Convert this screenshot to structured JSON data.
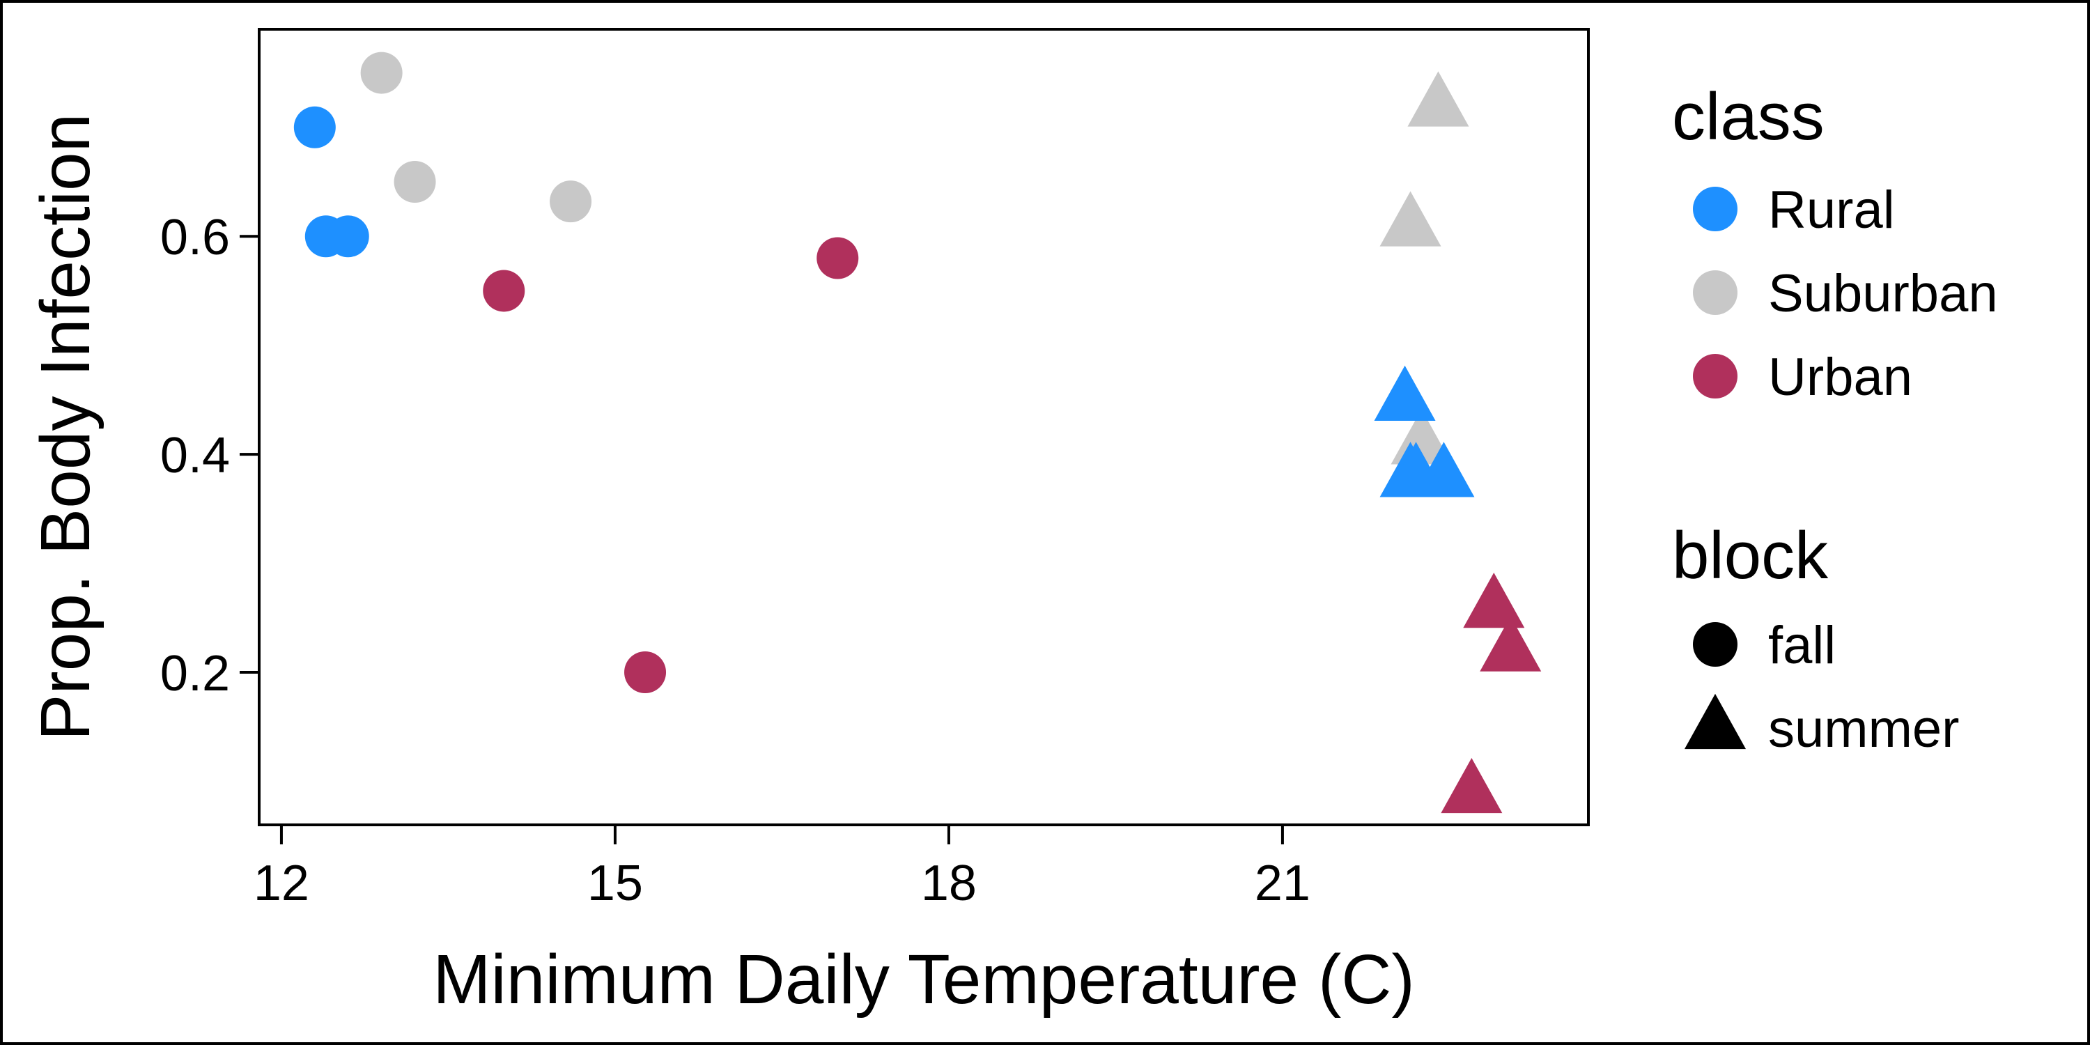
{
  "chart_data": {
    "type": "scatter",
    "title": "",
    "xlabel": "Minimum Daily Temperature (C)",
    "ylabel": "Prop. Body Infection",
    "xlim": [
      11.8,
      23.75
    ],
    "ylim": [
      0.06,
      0.79
    ],
    "x_ticks": [
      12,
      15,
      18,
      21
    ],
    "y_ticks": [
      0.2,
      0.4,
      0.6
    ],
    "x_tick_labels": [
      "12",
      "15",
      "18",
      "21"
    ],
    "y_tick_labels": [
      "0.2",
      "0.4",
      "0.6"
    ],
    "grid": false,
    "legend_placement": "right",
    "colors": {
      "Rural": "#1e90ff",
      "Suburban": "#c8c8c8",
      "Urban": "#b0305c"
    },
    "legends": [
      {
        "title": "class",
        "entries": [
          {
            "label": "Rural",
            "shape": "circle",
            "color": "#1e90ff"
          },
          {
            "label": "Suburban",
            "shape": "circle",
            "color": "#c8c8c8"
          },
          {
            "label": "Urban",
            "shape": "circle",
            "color": "#b0305c"
          }
        ]
      },
      {
        "title": "block",
        "entries": [
          {
            "label": "fall",
            "shape": "circle",
            "color": "#000000"
          },
          {
            "label": "summer",
            "shape": "triangle",
            "color": "#000000"
          }
        ]
      }
    ],
    "points": [
      {
        "x": 12.3,
        "y": 0.7,
        "class": "Rural",
        "block": "fall"
      },
      {
        "x": 12.4,
        "y": 0.6,
        "class": "Rural",
        "block": "fall"
      },
      {
        "x": 12.6,
        "y": 0.6,
        "class": "Rural",
        "block": "fall"
      },
      {
        "x": 12.9,
        "y": 0.75,
        "class": "Suburban",
        "block": "fall"
      },
      {
        "x": 13.2,
        "y": 0.65,
        "class": "Suburban",
        "block": "fall"
      },
      {
        "x": 14.6,
        "y": 0.632,
        "class": "Suburban",
        "block": "fall"
      },
      {
        "x": 14.0,
        "y": 0.55,
        "class": "Urban",
        "block": "fall"
      },
      {
        "x": 17.0,
        "y": 0.58,
        "class": "Urban",
        "block": "fall"
      },
      {
        "x": 15.27,
        "y": 0.2,
        "class": "Urban",
        "block": "fall"
      },
      {
        "x": 22.4,
        "y": 0.72,
        "class": "Suburban",
        "block": "summer"
      },
      {
        "x": 22.15,
        "y": 0.61,
        "class": "Suburban",
        "block": "summer"
      },
      {
        "x": 22.25,
        "y": 0.41,
        "class": "Suburban",
        "block": "summer"
      },
      {
        "x": 22.1,
        "y": 0.45,
        "class": "Rural",
        "block": "summer"
      },
      {
        "x": 22.15,
        "y": 0.38,
        "class": "Rural",
        "block": "summer"
      },
      {
        "x": 22.45,
        "y": 0.38,
        "class": "Rural",
        "block": "summer"
      },
      {
        "x": 22.2,
        "y": 0.38,
        "class": "Rural",
        "block": "summer"
      },
      {
        "x": 22.9,
        "y": 0.26,
        "class": "Urban",
        "block": "summer"
      },
      {
        "x": 23.05,
        "y": 0.22,
        "class": "Urban",
        "block": "summer"
      },
      {
        "x": 22.7,
        "y": 0.09,
        "class": "Urban",
        "block": "summer"
      }
    ]
  }
}
